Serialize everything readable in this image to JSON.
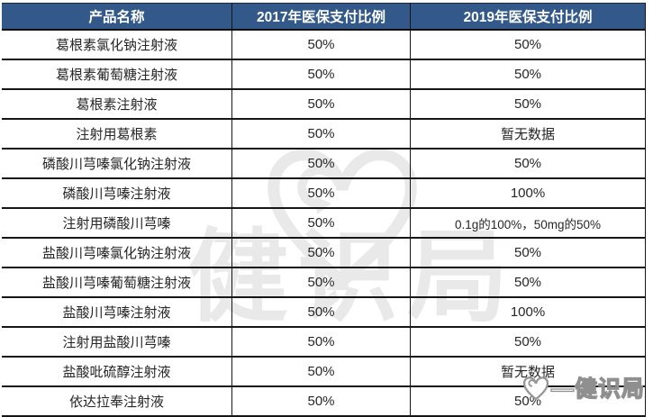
{
  "chart_data": {
    "type": "table",
    "title": "",
    "columns": [
      "产品名称",
      "2017年医保支付比例",
      "2019年医保支付比例"
    ],
    "rows": [
      [
        "葛根素氯化钠注射液",
        "50%",
        "50%"
      ],
      [
        "葛根素葡萄糖注射液",
        "50%",
        "50%"
      ],
      [
        "葛根素注射液",
        "50%",
        "50%"
      ],
      [
        "注射用葛根素",
        "50%",
        "暂无数据"
      ],
      [
        "磷酸川芎嗪氯化钠注射液",
        "50%",
        "50%"
      ],
      [
        "磷酸川芎嗪注射液",
        "50%",
        "100%"
      ],
      [
        "注射用磷酸川芎嗪",
        "50%",
        "0.1g的100%，50mg的50%"
      ],
      [
        "盐酸川芎嗪氯化钠注射液",
        "50%",
        "50%"
      ],
      [
        "盐酸川芎嗪葡萄糖注射液",
        "50%",
        "50%"
      ],
      [
        "盐酸川芎嗪注射液",
        "50%",
        "100%"
      ],
      [
        "注射用盐酸川芎嗪",
        "50%",
        "50%"
      ],
      [
        "盐酸吡硫醇注射液",
        "50%",
        "暂无数据"
      ],
      [
        "依达拉奉注射液",
        "50%",
        "50%"
      ]
    ]
  },
  "watermark": {
    "brand_text": "健识局",
    "corner_text": "—健识局"
  },
  "colors": {
    "header_bg": "#33598a",
    "header_text": "#ffffff",
    "border": "#161616",
    "watermark_gray": "#e9e9e9"
  }
}
